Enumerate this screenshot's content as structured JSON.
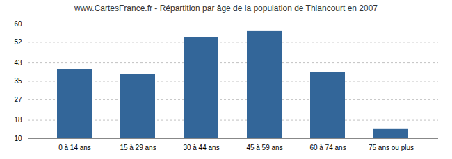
{
  "chart_data": {
    "type": "bar",
    "title": "www.CartesFrance.fr - Répartition par âge de la population de Thiancourt en 2007",
    "categories": [
      "0 à 14 ans",
      "15 à 29 ans",
      "30 à 44 ans",
      "45 à 59 ans",
      "60 à 74 ans",
      "75 ans ou plus"
    ],
    "values": [
      40,
      38,
      54,
      57,
      39,
      14
    ],
    "color": "#336699",
    "ylim": [
      10,
      60
    ],
    "yticks": [
      10,
      18,
      27,
      35,
      43,
      52,
      60
    ],
    "grid": true
  }
}
